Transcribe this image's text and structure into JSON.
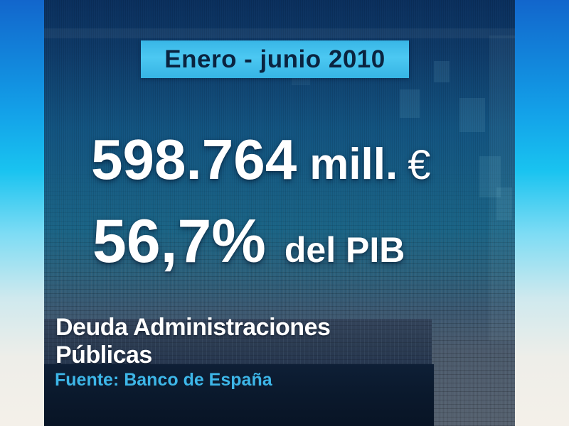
{
  "graphic": {
    "period": "Enero - junio 2010",
    "debt": {
      "value": "598.764",
      "unit": "mill.",
      "currency": "€"
    },
    "gdp": {
      "value": "56,7%",
      "label": "del PIB"
    },
    "title": "Deuda Administraciones Públicas",
    "source": "Fuente: Banco de España"
  },
  "colors": {
    "banner_bg": "#40c0ee",
    "banner_text": "#0a2440",
    "stat_text": "#ffffff",
    "panel_top": "#0a2f5d",
    "panel_mid_teal": "#1a6486",
    "panel_bottom_slate": "#56616f",
    "title_band_bg": "#2b3b51",
    "source_band_bg": "#0b1a2e",
    "source_text": "#3db6e8",
    "backdrop_top": "#1266cc",
    "backdrop_cyan": "#19c3f0",
    "backdrop_bottom": "#f4f0e9"
  }
}
